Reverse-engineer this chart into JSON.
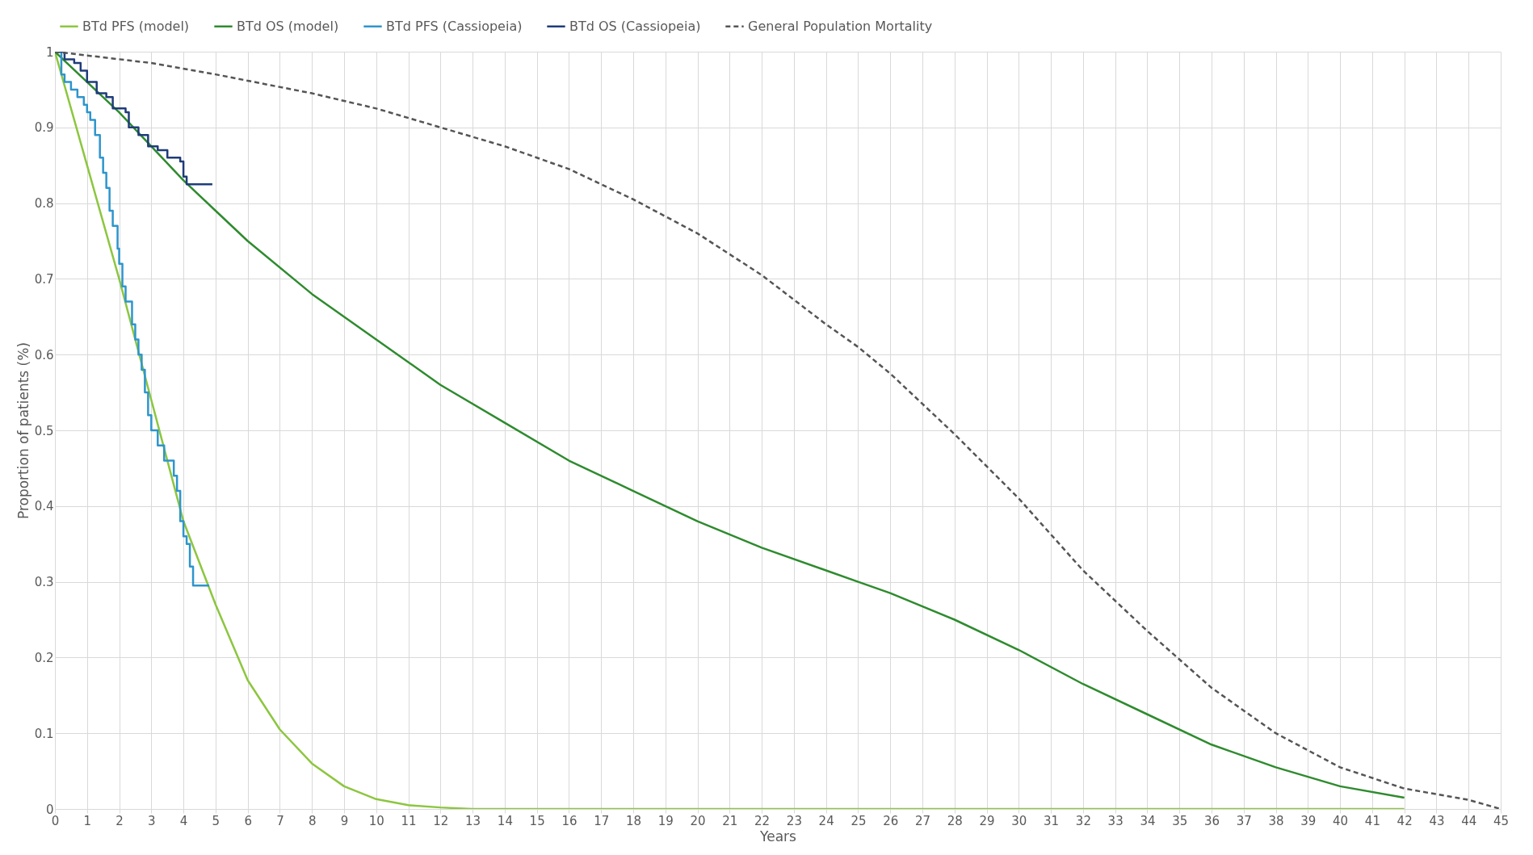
{
  "chart_data": {
    "type": "line",
    "xlabel": "Years",
    "ylabel": "Proportion of patients (%)",
    "xlim": [
      0,
      45
    ],
    "ylim": [
      0,
      1
    ],
    "xticks": [
      0,
      1,
      2,
      3,
      4,
      5,
      6,
      7,
      8,
      9,
      10,
      11,
      12,
      13,
      14,
      15,
      16,
      17,
      18,
      19,
      20,
      21,
      22,
      23,
      24,
      25,
      26,
      27,
      28,
      29,
      30,
      31,
      32,
      33,
      34,
      35,
      36,
      37,
      38,
      39,
      40,
      41,
      42,
      43,
      44,
      45
    ],
    "yticks": [
      0,
      0.1,
      0.2,
      0.3,
      0.4,
      0.5,
      0.6,
      0.7,
      0.8,
      0.9,
      1
    ],
    "grid": true,
    "legend": "top",
    "marker": "none",
    "series": [
      {
        "name": "BTd PFS (model)",
        "color": "#8cc63f",
        "type": "line",
        "line_style": "solid",
        "x": [
          0,
          1,
          2,
          3,
          4,
          5,
          6,
          7,
          8,
          9,
          10,
          11,
          12,
          13,
          42
        ],
        "values": [
          1,
          0.85,
          0.7,
          0.54,
          0.38,
          0.27,
          0.17,
          0.105,
          0.06,
          0.03,
          0.013,
          0.005,
          0.002,
          0,
          0
        ]
      },
      {
        "name": "BTd OS (model)",
        "color": "#2e8b2e",
        "type": "line",
        "line_style": "solid",
        "x": [
          0,
          2,
          4,
          5,
          6,
          8,
          10,
          12,
          14,
          16,
          18,
          20,
          22,
          24,
          25,
          26,
          28,
          30,
          32,
          34,
          36,
          38,
          40,
          42
        ],
        "values": [
          1,
          0.92,
          0.83,
          0.79,
          0.75,
          0.68,
          0.62,
          0.56,
          0.51,
          0.46,
          0.42,
          0.38,
          0.345,
          0.315,
          0.3,
          0.285,
          0.25,
          0.21,
          0.165,
          0.125,
          0.085,
          0.055,
          0.03,
          0.015
        ]
      },
      {
        "name": "BTd PFS (Cassiopeia)",
        "color": "#2e95cc",
        "type": "step",
        "line_style": "solid",
        "x": [
          0,
          0.2,
          0.3,
          0.5,
          0.7,
          0.9,
          1.0,
          1.1,
          1.25,
          1.4,
          1.5,
          1.6,
          1.7,
          1.8,
          1.95,
          2.0,
          2.1,
          2.2,
          2.4,
          2.5,
          2.6,
          2.7,
          2.8,
          2.9,
          3.0,
          3.2,
          3.4,
          3.7,
          3.8,
          3.9,
          4.0,
          4.1,
          4.2,
          4.3,
          4.8
        ],
        "values": [
          1,
          0.97,
          0.96,
          0.95,
          0.94,
          0.93,
          0.92,
          0.91,
          0.89,
          0.86,
          0.84,
          0.82,
          0.79,
          0.77,
          0.74,
          0.72,
          0.69,
          0.67,
          0.64,
          0.62,
          0.6,
          0.58,
          0.55,
          0.52,
          0.5,
          0.48,
          0.46,
          0.44,
          0.42,
          0.38,
          0.36,
          0.35,
          0.32,
          0.295,
          0.295
        ]
      },
      {
        "name": "BTd OS (Cassiopeia)",
        "color": "#1f3c7a",
        "type": "step",
        "line_style": "solid",
        "x": [
          0,
          0.3,
          0.6,
          0.8,
          1.0,
          1.3,
          1.6,
          1.8,
          2.2,
          2.3,
          2.6,
          2.9,
          3.2,
          3.5,
          3.9,
          4.0,
          4.1,
          4.9
        ],
        "values": [
          1,
          0.99,
          0.985,
          0.975,
          0.96,
          0.945,
          0.94,
          0.925,
          0.92,
          0.9,
          0.89,
          0.875,
          0.87,
          0.86,
          0.855,
          0.835,
          0.825,
          0.825
        ]
      },
      {
        "name": "General Population Mortality",
        "color": "#555555",
        "type": "line",
        "line_style": "dashed",
        "x": [
          0,
          3,
          5,
          8,
          10,
          12,
          14,
          16,
          18,
          20,
          22,
          24,
          25,
          26,
          28,
          30,
          32,
          34,
          36,
          38,
          40,
          42,
          44,
          45
        ],
        "values": [
          1,
          0.985,
          0.97,
          0.945,
          0.925,
          0.9,
          0.875,
          0.845,
          0.805,
          0.76,
          0.705,
          0.64,
          0.61,
          0.575,
          0.495,
          0.41,
          0.315,
          0.235,
          0.16,
          0.1,
          0.055,
          0.027,
          0.012,
          0
        ]
      }
    ]
  }
}
